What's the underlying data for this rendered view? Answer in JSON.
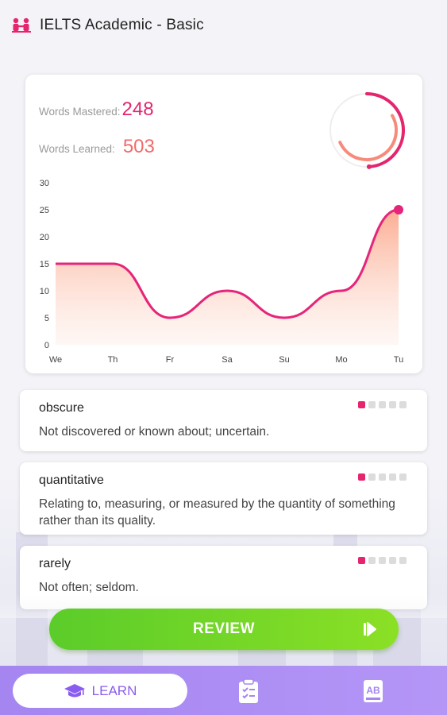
{
  "header": {
    "title": "IELTS Academic - Basic",
    "icon": "classroom-icon"
  },
  "stats": {
    "mastered_label": "Words Mastered:",
    "mastered_value": "248",
    "learned_label": "Words Learned:",
    "learned_value": "503",
    "mastered_ratio": 0.49
  },
  "chart_data": {
    "type": "area",
    "categories": [
      "We",
      "Th",
      "Fr",
      "Sa",
      "Su",
      "Mo",
      "Tu"
    ],
    "values": [
      15,
      15,
      5,
      10,
      5,
      10,
      25
    ],
    "ylim": [
      0,
      30
    ],
    "yticks": [
      "30",
      "25",
      "20",
      "15",
      "10",
      "5",
      "0"
    ],
    "grid": false,
    "line_color": "#e5257a",
    "fill_color": "#fcb59a"
  },
  "words": [
    {
      "word": "obscure",
      "definition": "Not discovered or known about; uncertain.",
      "level": 1
    },
    {
      "word": "quantitative",
      "definition": "Relating to, measuring, or measured by the quantity of something rather than its quality.",
      "level": 1
    },
    {
      "word": "rarely",
      "definition": "Not often; seldom.",
      "level": 1
    }
  ],
  "review": {
    "label": "REVIEW",
    "icon": "play-icon"
  },
  "nav": {
    "learn_label": "LEARN",
    "learn_icon": "graduation-cap-icon",
    "quiz_icon": "clipboard-icon",
    "dictionary_icon": "ab-book-icon"
  },
  "colors": {
    "accent": "#e5256e",
    "secondary": "#f36a6a",
    "green": "#6dd427",
    "purple": "#a585f0"
  }
}
